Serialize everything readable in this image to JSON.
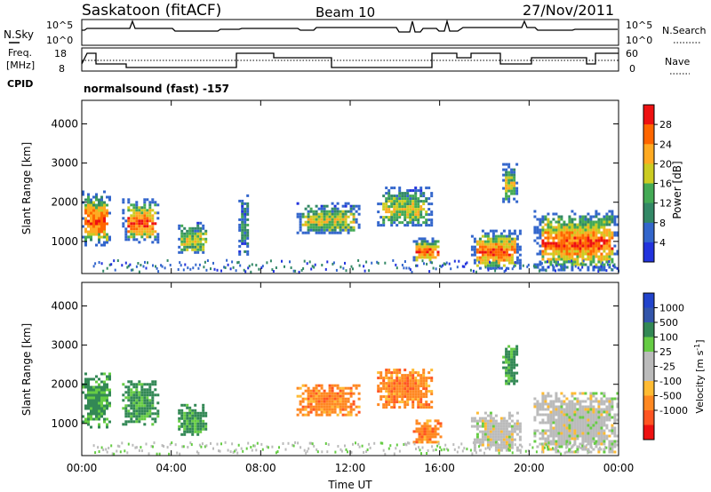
{
  "header": {
    "station": "Saskatoon (fitACF)",
    "beam": "Beam 10",
    "date": "27/Nov/2011"
  },
  "panels": {
    "nsky": {
      "left_label": "N.Sky",
      "right_label": "N.Search",
      "tick_top": "10^5",
      "tick_bottom": "10^0"
    },
    "freq": {
      "left_label_line1": "Freq.",
      "left_label_line2": "[MHz]",
      "tick_top": "18",
      "tick_bottom": "8",
      "right_tick_top": "60",
      "right_tick_bottom": "0",
      "right_label": "Nave"
    },
    "cpid": {
      "left_label": "CPID",
      "text": "normalsound (fast) -157"
    }
  },
  "colors": {
    "power_scale": [
      "#2233dd",
      "#3366cc",
      "#338866",
      "#44aa55",
      "#cccc22",
      "#ffaa22",
      "#ff6600",
      "#ee1111"
    ],
    "velocity_scale": [
      "#ee1111",
      "#ff5522",
      "#ff8822",
      "#ffbb33",
      "#bbbbbb",
      "#bbbbbb",
      "#66cc44",
      "#338855",
      "#3355aa",
      "#2244cc"
    ]
  },
  "chart_data": [
    {
      "type": "heatmap",
      "name": "power",
      "ylabel": "Slant Range [km]",
      "xlabel": "",
      "ylim": [
        180,
        4600
      ],
      "xlim_hours": [
        0,
        24
      ],
      "yticks": [
        "1000",
        "2000",
        "3000",
        "4000"
      ],
      "colorbar": {
        "label": "Power [dB]",
        "ticks": [
          "4",
          "8",
          "12",
          "16",
          "20",
          "24",
          "28"
        ]
      },
      "echo_regions": [
        {
          "t_start": 0.0,
          "t_end": 1.2,
          "r_min": 900,
          "r_max": 2300,
          "dominant": "strong"
        },
        {
          "t_start": 1.8,
          "t_end": 3.4,
          "r_min": 1000,
          "r_max": 2100,
          "dominant": "strong"
        },
        {
          "t_start": 4.3,
          "t_end": 5.6,
          "r_min": 700,
          "r_max": 1500,
          "dominant": "moderate"
        },
        {
          "t_start": 7.0,
          "t_end": 7.4,
          "r_min": 600,
          "r_max": 2200,
          "dominant": "weak"
        },
        {
          "t_start": 9.6,
          "t_end": 12.4,
          "r_min": 1200,
          "r_max": 2000,
          "dominant": "moderate"
        },
        {
          "t_start": 13.2,
          "t_end": 15.6,
          "r_min": 1400,
          "r_max": 2400,
          "dominant": "moderate"
        },
        {
          "t_start": 14.8,
          "t_end": 16.0,
          "r_min": 500,
          "r_max": 1100,
          "dominant": "strong"
        },
        {
          "t_start": 17.4,
          "t_end": 19.6,
          "r_min": 300,
          "r_max": 1300,
          "dominant": "strong"
        },
        {
          "t_start": 18.8,
          "t_end": 19.4,
          "r_min": 2000,
          "r_max": 3000,
          "dominant": "moderate"
        },
        {
          "t_start": 20.2,
          "t_end": 24.0,
          "r_min": 300,
          "r_max": 1800,
          "dominant": "strong"
        }
      ]
    },
    {
      "type": "heatmap",
      "name": "velocity",
      "ylabel": "Slant Range [km]",
      "xlabel": "Time UT",
      "ylim": [
        180,
        4600
      ],
      "xlim_hours": [
        0,
        24
      ],
      "yticks": [
        "1000",
        "2000",
        "3000",
        "4000"
      ],
      "xticks": [
        "00:00",
        "04:00",
        "08:00",
        "12:00",
        "16:00",
        "20:00",
        "00:00"
      ],
      "colorbar": {
        "label": "Velocity [m s^-1]",
        "ticks": [
          "1000",
          "500",
          "100",
          "25",
          "-25",
          "-100",
          "-500",
          "-1000"
        ]
      },
      "echo_regions": [
        {
          "t_start": 0.0,
          "t_end": 1.2,
          "r_min": 900,
          "r_max": 2300,
          "dominant": "100"
        },
        {
          "t_start": 1.8,
          "t_end": 3.4,
          "r_min": 1000,
          "r_max": 2100,
          "dominant": "100"
        },
        {
          "t_start": 4.3,
          "t_end": 5.6,
          "r_min": 700,
          "r_max": 1500,
          "dominant": "100"
        },
        {
          "t_start": 9.6,
          "t_end": 12.4,
          "r_min": 1200,
          "r_max": 2000,
          "dominant": "-100"
        },
        {
          "t_start": 13.2,
          "t_end": 15.6,
          "r_min": 1400,
          "r_max": 2400,
          "dominant": "-100"
        },
        {
          "t_start": 14.8,
          "t_end": 16.0,
          "r_min": 500,
          "r_max": 1100,
          "dominant": "-100"
        },
        {
          "t_start": 17.4,
          "t_end": 19.6,
          "r_min": 300,
          "r_max": 1300,
          "dominant": "0"
        },
        {
          "t_start": 18.8,
          "t_end": 19.4,
          "r_min": 2000,
          "r_max": 3000,
          "dominant": "100"
        },
        {
          "t_start": 20.2,
          "t_end": 24.0,
          "r_min": 300,
          "r_max": 1800,
          "dominant": "0"
        }
      ]
    }
  ]
}
